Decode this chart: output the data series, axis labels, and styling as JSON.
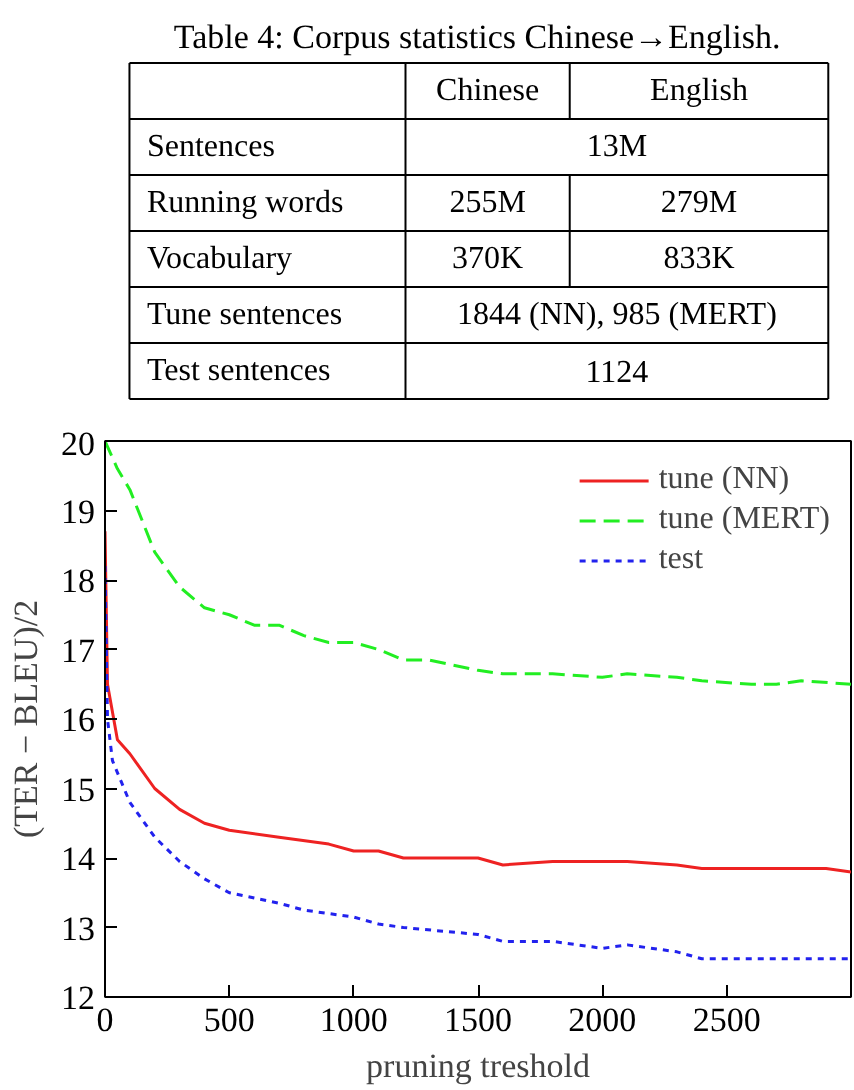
{
  "chart_data": [
    {
      "type": "other",
      "title": "Table 4: Corpus statistics Chinese→English.",
      "categories": [
        "Chinese",
        "English"
      ],
      "y_categories": [
        "Sentences",
        "Running words",
        "Vocabulary",
        "Tune sentences",
        "Test sentences"
      ],
      "cell_labels": [
        [
          "13M",
          null
        ],
        [
          "255M",
          "279M"
        ],
        [
          "370K",
          "833K"
        ],
        [
          "1844 (NN), 985 (MERT)",
          null
        ],
        [
          "1124",
          null
        ]
      ]
    },
    {
      "type": "line",
      "xlabel": "pruning treshold",
      "ylabel": "(TER − BLEU)/2",
      "xlim": [
        0,
        3000
      ],
      "ylim": [
        12,
        20
      ],
      "xticks": [
        0,
        500,
        1000,
        1500,
        2000,
        2500
      ],
      "yticks": [
        12,
        13,
        14,
        15,
        16,
        17,
        18,
        19,
        20
      ],
      "grid": false,
      "legend": "top right",
      "series": [
        {
          "name": "tune (NN)",
          "color": "#ee2222",
          "line_style": "solid",
          "x": [
            0,
            10,
            50,
            100,
            200,
            300,
            400,
            500,
            700,
            900,
            1000,
            1100,
            1200,
            1500,
            1600,
            1800,
            2000,
            2100,
            2300,
            2400,
            2500,
            2700,
            2900,
            3000
          ],
          "values": [
            18.7,
            16.5,
            15.7,
            15.5,
            15.0,
            14.7,
            14.5,
            14.4,
            14.3,
            14.2,
            14.1,
            14.1,
            14.0,
            14.0,
            13.9,
            13.95,
            13.95,
            13.95,
            13.9,
            13.85,
            13.85,
            13.85,
            13.85,
            13.8
          ]
        },
        {
          "name": "tune (MERT)",
          "color": "#22ee22",
          "line_style": "dashed",
          "x": [
            0,
            50,
            100,
            200,
            300,
            400,
            500,
            600,
            700,
            800,
            900,
            1000,
            1100,
            1200,
            1300,
            1500,
            1600,
            1800,
            2000,
            2100,
            2300,
            2400,
            2600,
            2700,
            2800,
            3000
          ],
          "values": [
            20.0,
            19.6,
            19.3,
            18.4,
            17.9,
            17.6,
            17.5,
            17.35,
            17.35,
            17.2,
            17.1,
            17.1,
            17.0,
            16.85,
            16.85,
            16.7,
            16.65,
            16.65,
            16.6,
            16.65,
            16.6,
            16.55,
            16.5,
            16.5,
            16.55,
            16.5
          ]
        },
        {
          "name": "test",
          "color": "#2222ee",
          "line_style": "dotted",
          "x": [
            0,
            10,
            30,
            100,
            200,
            300,
            400,
            500,
            700,
            800,
            1000,
            1100,
            1200,
            1500,
            1600,
            1800,
            2000,
            2100,
            2300,
            2400,
            2600,
            3000
          ],
          "values": [
            18.2,
            16.0,
            15.4,
            14.8,
            14.3,
            13.95,
            13.7,
            13.5,
            13.35,
            13.25,
            13.15,
            13.05,
            13.0,
            12.9,
            12.8,
            12.8,
            12.7,
            12.75,
            12.65,
            12.55,
            12.55,
            12.55
          ]
        }
      ]
    }
  ]
}
